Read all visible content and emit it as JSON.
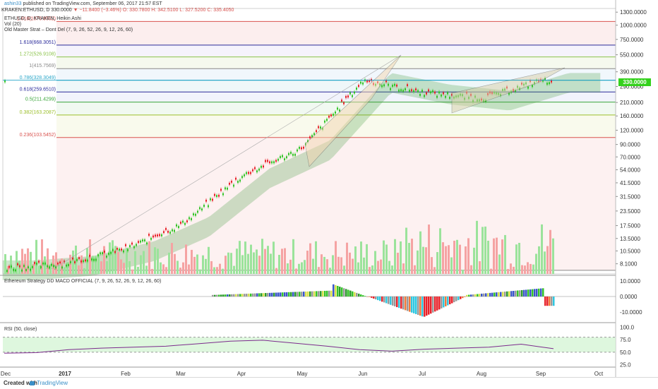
{
  "header": {
    "user": "ashin33",
    "published": "published on TradingView.com, September 06, 2017 21:57 EST",
    "symbol_line": "KRAKEN:ETHUSD, D",
    "last": "330.0000",
    "change": "▼ −11.8400 (−3.46%)",
    "ohlc": "O: 330.7800 H: 342.5100 L: 327.5200 C: 335.4050",
    "series_title": "ETHUSD, D, KRAKEN, Heikin Ashi",
    "vol_label": "Vol (20)",
    "strategy_label": "Old Master Strat – Dont Del (7, 9, 26, 52, 26, 9, 12, 26, 60)"
  },
  "macd_title": "Ethereum Strategy DD MACD OFFICIAL (7, 9, 26, 52, 26, 9, 12, 26, 60)",
  "rsi_title": "RSI (50, close)",
  "footer": {
    "created": "Created with",
    "brand": "TradingView"
  },
  "colors": {
    "up": "#34c428",
    "down": "#e8222a",
    "cloud_bull": "#3f9a3a",
    "cloud_bear": "#e8707a",
    "volume_up": "#9be39b",
    "volume_down": "#f5a3a3",
    "rsi_line": "#7b2a8c",
    "rsi_band": "#d6f5d6",
    "last_price": "#34d11c"
  },
  "chart_data": [
    {
      "type": "candlestick",
      "title": "ETHUSD, D, KRAKEN, Heikin Ashi",
      "y_scale": "log",
      "y_ticks": [
        "1300.0000",
        "1000.0000",
        "750.0000",
        "550.0000",
        "390.0000",
        "290.0000",
        "210.0000",
        "160.0000",
        "120.0000",
        "90.0000",
        "70.0000",
        "54.0000",
        "41.5000",
        "31.5000",
        "23.5000",
        "17.5000",
        "13.5000",
        "10.5000",
        "8.1000"
      ],
      "x_ticks": [
        "Dec",
        "2017",
        "Feb",
        "Mar",
        "Apr",
        "May",
        "Jun",
        "Jul",
        "Aug",
        "Sep",
        "Oct"
      ],
      "last_price": "330.0000",
      "fib_levels": [
        {
          "label": "1.618(1076.9592)",
          "value": 1076.9592,
          "color": "#d9534f"
        },
        {
          "label": "1.618(668.3051)",
          "value": 668.3051,
          "color": "#2a2a9a"
        },
        {
          "label": "1.272(526.9108)",
          "value": 526.9108,
          "color": "#8bc34a"
        },
        {
          "label": "1(415.7569)",
          "value": 415.7569,
          "color": "#888888"
        },
        {
          "label": "0.786(328.3049)",
          "value": 328.3049,
          "color": "#2aa7c9"
        },
        {
          "label": "0.618(259.6510)",
          "value": 259.651,
          "color": "#2a2a9a"
        },
        {
          "label": "0.5(211.4299)",
          "value": 211.4299,
          "color": "#3aa63a"
        },
        {
          "label": "0.382(163.2087)",
          "value": 163.2087,
          "color": "#9bbf2a"
        },
        {
          "label": "0.236(103.5452)",
          "value": 103.5452,
          "color": "#d9534f"
        },
        {
          "label": "0(7.1...)",
          "value": 7.1,
          "color": "#888888"
        }
      ],
      "series_close_approx": {
        "months": [
          "Dec",
          "2017",
          "Feb",
          "Mar",
          "Apr",
          "May",
          "Jun",
          "Jul",
          "Aug",
          "Sep"
        ],
        "values": [
          7.5,
          8.2,
          11.0,
          18.0,
          48.0,
          85.0,
          330.0,
          260.0,
          230.0,
          330.0
        ]
      }
    },
    {
      "type": "bar",
      "title": "Ethereum Strategy DD MACD OFFICIAL (7, 9, 26, 52, 26, 9, 12, 26, 60)",
      "y_ticks": [
        "10.0000",
        "0.0000",
        "-10.0000"
      ],
      "ylim": [
        -15,
        13
      ]
    },
    {
      "type": "line",
      "title": "RSI (50, close)",
      "y_ticks": [
        "100.0",
        "75.0",
        "50.0",
        "25.0"
      ],
      "ylim": [
        20,
        105
      ],
      "band": [
        50,
        80
      ],
      "approx_values": [
        48,
        49,
        55,
        58,
        60,
        62,
        67,
        72,
        74,
        68,
        62,
        55,
        52,
        56,
        58,
        60,
        66,
        57
      ]
    }
  ]
}
